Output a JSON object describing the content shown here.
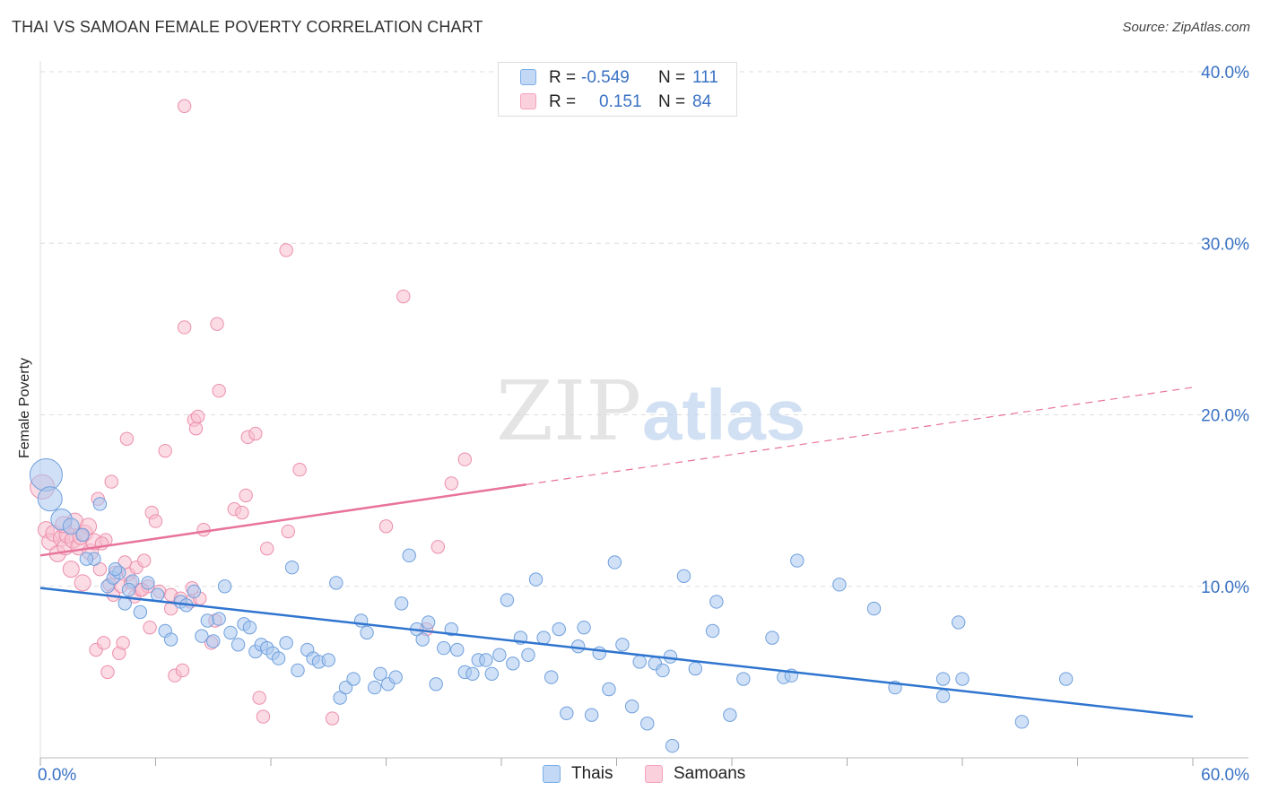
{
  "header": {
    "title": "THAI VS SAMOAN FEMALE POVERTY CORRELATION CHART",
    "source": "Source: ZipAtlas.com"
  },
  "watermark": {
    "zip": "ZIP",
    "atlas": "atlas"
  },
  "legend": {
    "rows": [
      {
        "r_label": "R =",
        "r_value": "-0.549",
        "n_label": "N =",
        "n_value": "111",
        "color": "#7aaee8"
      },
      {
        "r_label": "R =",
        "r_value": "0.151",
        "n_label": "N =",
        "n_value": "84",
        "color": "#f4a3bb"
      }
    ]
  },
  "bottom_legend": {
    "thais": "Thais",
    "samoans": "Samoans"
  },
  "colors": {
    "thai_fill": "#a9c8f0",
    "thai_stroke": "#6f9fdc",
    "thai_line": "#2f75cf",
    "samoan_fill": "#f8bfd0",
    "samoan_stroke": "#ec8eab",
    "samoan_line": "#e8739b",
    "tick_label": "#3a72c4",
    "grid": "#dddddd"
  },
  "chart_data": {
    "type": "scatter",
    "title": "THAI VS SAMOAN FEMALE POVERTY CORRELATION CHART",
    "xlabel": "",
    "ylabel": "Female Poverty",
    "xlim": [
      0,
      60
    ],
    "ylim": [
      0,
      40
    ],
    "x_tick_labels": [
      "0.0%",
      "60.0%"
    ],
    "y_ticks": [
      10,
      20,
      30,
      40
    ],
    "y_tick_labels": [
      "10.0%",
      "20.0%",
      "30.0%",
      "40.0%"
    ],
    "grid": true,
    "legend_placement": "top-center",
    "series": [
      {
        "name": "Thais",
        "r": -0.549,
        "n": 111,
        "trend": {
          "x": [
            0,
            60
          ],
          "y": [
            9.9,
            2.4
          ],
          "solid_to": 60
        },
        "points": [
          [
            0.3,
            16.5,
            2
          ],
          [
            0.5,
            15.1,
            1.5
          ],
          [
            1.1,
            13.9,
            1.3
          ],
          [
            1.6,
            13.5,
            1
          ],
          [
            2.2,
            13.0,
            0.8
          ],
          [
            2.8,
            11.6,
            0.8
          ],
          [
            3.1,
            14.8,
            0.8
          ],
          [
            3.5,
            10.0,
            0.8
          ],
          [
            3.8,
            10.5,
            0.8
          ],
          [
            4.1,
            10.8,
            0.8
          ],
          [
            4.4,
            9.0,
            0.8
          ],
          [
            4.8,
            10.3,
            0.8
          ],
          [
            5.2,
            8.5,
            0.8
          ],
          [
            5.6,
            10.2,
            0.8
          ],
          [
            6.1,
            9.5,
            0.8
          ],
          [
            6.5,
            7.4,
            0.8
          ],
          [
            6.8,
            6.9,
            0.8
          ],
          [
            7.3,
            9.1,
            0.8
          ],
          [
            7.6,
            8.9,
            0.8
          ],
          [
            8.0,
            9.7,
            0.8
          ],
          [
            8.4,
            7.1,
            0.8
          ],
          [
            8.7,
            8.0,
            0.8
          ],
          [
            9.0,
            6.8,
            0.8
          ],
          [
            9.3,
            8.1,
            0.8
          ],
          [
            9.6,
            10.0,
            0.8
          ],
          [
            9.9,
            7.3,
            0.8
          ],
          [
            10.3,
            6.6,
            0.8
          ],
          [
            10.6,
            7.8,
            0.8
          ],
          [
            10.9,
            7.6,
            0.8
          ],
          [
            11.2,
            6.2,
            0.8
          ],
          [
            11.5,
            6.6,
            0.8
          ],
          [
            11.8,
            6.4,
            0.8
          ],
          [
            12.1,
            6.1,
            0.8
          ],
          [
            12.4,
            5.8,
            0.8
          ],
          [
            12.8,
            6.7,
            0.8
          ],
          [
            13.1,
            11.1,
            0.8
          ],
          [
            13.4,
            5.1,
            0.8
          ],
          [
            13.9,
            6.3,
            0.8
          ],
          [
            14.2,
            5.8,
            0.8
          ],
          [
            14.5,
            5.6,
            0.8
          ],
          [
            15.0,
            5.7,
            0.8
          ],
          [
            15.4,
            10.2,
            0.8
          ],
          [
            15.6,
            3.5,
            0.8
          ],
          [
            15.9,
            4.1,
            0.8
          ],
          [
            16.3,
            4.6,
            0.8
          ],
          [
            16.7,
            8.0,
            0.8
          ],
          [
            17.0,
            7.3,
            0.8
          ],
          [
            17.4,
            4.1,
            0.8
          ],
          [
            17.7,
            4.9,
            0.8
          ],
          [
            18.1,
            4.3,
            0.8
          ],
          [
            18.5,
            4.7,
            0.8
          ],
          [
            18.8,
            9.0,
            0.8
          ],
          [
            19.2,
            11.8,
            0.8
          ],
          [
            19.6,
            7.5,
            0.8
          ],
          [
            19.9,
            6.9,
            0.8
          ],
          [
            20.2,
            7.9,
            0.8
          ],
          [
            20.6,
            4.3,
            0.8
          ],
          [
            21.0,
            6.4,
            0.8
          ],
          [
            21.4,
            7.5,
            0.8
          ],
          [
            21.7,
            6.3,
            0.8
          ],
          [
            22.1,
            5.0,
            0.8
          ],
          [
            22.5,
            4.9,
            0.8
          ],
          [
            22.8,
            5.7,
            0.8
          ],
          [
            23.2,
            5.7,
            0.8
          ],
          [
            23.5,
            4.9,
            0.8
          ],
          [
            23.9,
            6.0,
            0.8
          ],
          [
            24.3,
            9.2,
            0.8
          ],
          [
            24.6,
            5.5,
            0.8
          ],
          [
            25.0,
            7.0,
            0.8
          ],
          [
            25.4,
            6.0,
            0.8
          ],
          [
            25.8,
            10.4,
            0.8
          ],
          [
            26.2,
            7.0,
            0.8
          ],
          [
            26.6,
            4.7,
            0.8
          ],
          [
            27.0,
            7.5,
            0.8
          ],
          [
            27.4,
            2.6,
            0.8
          ],
          [
            28.0,
            6.5,
            0.8
          ],
          [
            28.3,
            7.6,
            0.8
          ],
          [
            28.7,
            2.5,
            0.8
          ],
          [
            29.1,
            6.1,
            0.8
          ],
          [
            29.6,
            4.0,
            0.8
          ],
          [
            29.9,
            11.4,
            0.8
          ],
          [
            30.3,
            6.6,
            0.8
          ],
          [
            30.8,
            3.0,
            0.8
          ],
          [
            31.2,
            5.6,
            0.8
          ],
          [
            31.6,
            2.0,
            0.8
          ],
          [
            32.0,
            5.5,
            0.8
          ],
          [
            32.4,
            5.1,
            0.8
          ],
          [
            32.8,
            5.9,
            0.8
          ],
          [
            32.9,
            0.7,
            0.8
          ],
          [
            33.5,
            10.6,
            0.8
          ],
          [
            34.1,
            5.2,
            0.8
          ],
          [
            35.0,
            7.4,
            0.8
          ],
          [
            35.2,
            9.1,
            0.8
          ],
          [
            35.9,
            2.5,
            0.8
          ],
          [
            36.6,
            4.6,
            0.8
          ],
          [
            38.1,
            7.0,
            0.8
          ],
          [
            38.7,
            4.7,
            0.8
          ],
          [
            39.1,
            4.8,
            0.8
          ],
          [
            39.4,
            11.5,
            0.8
          ],
          [
            41.6,
            10.1,
            0.8
          ],
          [
            43.4,
            8.7,
            0.8
          ],
          [
            44.5,
            4.1,
            0.8
          ],
          [
            47.0,
            3.6,
            0.8
          ],
          [
            47.8,
            7.9,
            0.8
          ],
          [
            47.0,
            4.6,
            0.8
          ],
          [
            48.0,
            4.6,
            0.8
          ],
          [
            51.1,
            2.1,
            0.8
          ],
          [
            53.4,
            4.6,
            0.8
          ],
          [
            2.4,
            11.6,
            0.8
          ],
          [
            3.9,
            11.0,
            0.8
          ],
          [
            4.6,
            9.8,
            0.8
          ]
        ]
      },
      {
        "name": "Samoans",
        "r": 0.151,
        "n": 84,
        "trend": {
          "x": [
            0,
            60
          ],
          "y": [
            11.8,
            21.6
          ],
          "solid_to": 25.3
        },
        "points": [
          [
            0.1,
            15.8,
            1.5
          ],
          [
            0.3,
            13.3,
            1
          ],
          [
            0.5,
            12.6,
            1
          ],
          [
            0.7,
            13.1,
            1
          ],
          [
            0.9,
            11.9,
            1
          ],
          [
            1.1,
            12.8,
            1
          ],
          [
            1.3,
            12.3,
            1
          ],
          [
            1.4,
            13.0,
            1
          ],
          [
            1.6,
            11.0,
            1
          ],
          [
            1.7,
            12.7,
            1
          ],
          [
            1.8,
            13.8,
            1
          ],
          [
            2.0,
            12.3,
            1
          ],
          [
            2.2,
            10.2,
            1
          ],
          [
            2.3,
            13.1,
            1
          ],
          [
            2.5,
            13.5,
            1
          ],
          [
            2.6,
            12.0,
            1
          ],
          [
            2.8,
            12.6,
            1
          ],
          [
            2.9,
            6.3,
            0.8
          ],
          [
            3.0,
            15.1,
            0.8
          ],
          [
            3.1,
            11.0,
            0.8
          ],
          [
            3.3,
            6.7,
            0.8
          ],
          [
            3.4,
            12.7,
            0.8
          ],
          [
            3.5,
            5.0,
            0.8
          ],
          [
            3.6,
            10.1,
            0.8
          ],
          [
            3.7,
            16.1,
            0.8
          ],
          [
            3.8,
            9.5,
            0.8
          ],
          [
            3.9,
            10.8,
            0.8
          ],
          [
            4.1,
            6.1,
            0.8
          ],
          [
            4.2,
            10.0,
            0.8
          ],
          [
            4.3,
            6.7,
            0.8
          ],
          [
            4.4,
            11.4,
            0.8
          ],
          [
            4.5,
            18.6,
            0.8
          ],
          [
            4.6,
            10.7,
            0.8
          ],
          [
            4.9,
            9.4,
            0.8
          ],
          [
            5.0,
            11.1,
            0.8
          ],
          [
            5.2,
            9.8,
            0.8
          ],
          [
            5.4,
            11.5,
            0.8
          ],
          [
            5.6,
            10.0,
            0.8
          ],
          [
            5.7,
            7.6,
            0.8
          ],
          [
            5.8,
            14.3,
            0.8
          ],
          [
            6.0,
            13.8,
            0.8
          ],
          [
            6.2,
            9.7,
            0.8
          ],
          [
            6.5,
            17.9,
            0.8
          ],
          [
            6.8,
            8.7,
            0.8
          ],
          [
            6.8,
            9.5,
            0.8
          ],
          [
            7.0,
            4.8,
            0.8
          ],
          [
            7.3,
            9.3,
            0.8
          ],
          [
            7.4,
            5.1,
            0.8
          ],
          [
            7.5,
            25.1,
            0.8
          ],
          [
            7.5,
            38.0,
            0.8
          ],
          [
            7.8,
            9.1,
            0.8
          ],
          [
            7.9,
            9.9,
            0.8
          ],
          [
            8.0,
            19.7,
            0.8
          ],
          [
            8.1,
            19.2,
            0.8
          ],
          [
            8.2,
            19.9,
            0.8
          ],
          [
            8.3,
            9.3,
            0.8
          ],
          [
            8.5,
            13.3,
            0.8
          ],
          [
            8.9,
            6.7,
            0.8
          ],
          [
            9.1,
            8.0,
            0.8
          ],
          [
            9.2,
            25.3,
            0.8
          ],
          [
            9.3,
            21.4,
            0.8
          ],
          [
            10.1,
            14.5,
            0.8
          ],
          [
            10.5,
            14.3,
            0.8
          ],
          [
            10.7,
            15.3,
            0.8
          ],
          [
            10.8,
            18.7,
            0.8
          ],
          [
            11.2,
            18.9,
            0.8
          ],
          [
            11.4,
            3.5,
            0.8
          ],
          [
            11.6,
            2.4,
            0.8
          ],
          [
            11.8,
            12.2,
            0.8
          ],
          [
            12.8,
            29.6,
            0.8
          ],
          [
            12.9,
            13.2,
            0.8
          ],
          [
            13.5,
            16.8,
            0.8
          ],
          [
            15.2,
            2.3,
            0.8
          ],
          [
            18.0,
            13.5,
            0.8
          ],
          [
            18.9,
            26.9,
            0.8
          ],
          [
            20.1,
            7.5,
            0.8
          ],
          [
            20.7,
            12.3,
            0.8
          ],
          [
            21.4,
            16.0,
            0.8
          ],
          [
            22.1,
            17.4,
            0.8
          ],
          [
            1.2,
            13.6,
            1
          ],
          [
            2.1,
            12.9,
            1
          ],
          [
            3.2,
            12.5,
            0.8
          ],
          [
            4.7,
            10.2,
            0.8
          ],
          [
            5.3,
            9.8,
            0.8
          ]
        ]
      }
    ]
  }
}
